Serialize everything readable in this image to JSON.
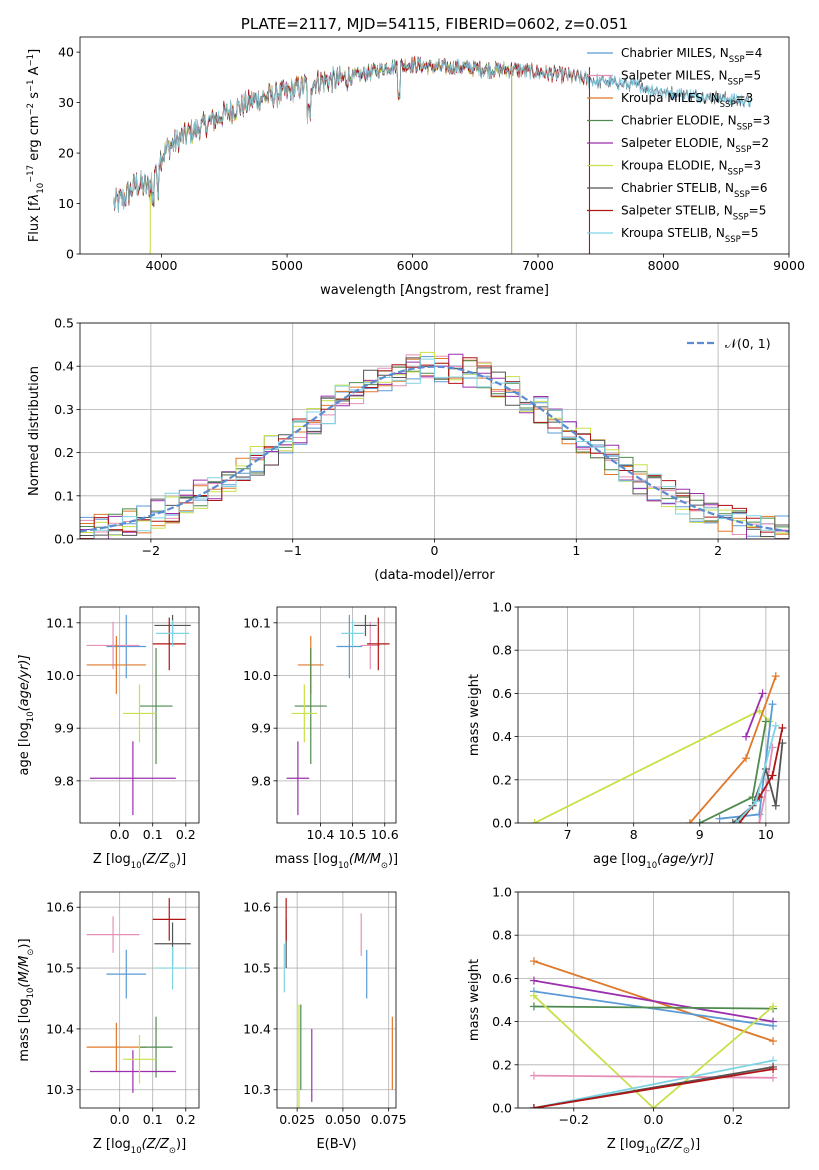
{
  "colors": {
    "Chabrier MILES": "#5a9bd5",
    "Salpeter MILES": "#e58fb8",
    "Kroupa MILES": "#e0782a",
    "Chabrier ELODIE": "#4e8a4e",
    "Salpeter ELODIE": "#9b2fae",
    "Kroupa ELODIE": "#c8e04a",
    "Chabrier STELIB": "#555555",
    "Salpeter STELIB": "#b01515",
    "Kroupa STELIB": "#7fd4e4",
    "normal_curve": "#5b8bd0"
  },
  "chart_data": [
    {
      "id": "spectrum",
      "type": "line",
      "title": "PLATE=2117, MJD=54115, FIBERID=0602, z=0.051",
      "xlabel": "wavelength [Angstrom, rest frame]",
      "ylabel_parts": [
        "Flux [f",
        "λ",
        "10",
        "−17",
        " erg cm",
        "−2",
        " s",
        "−1",
        " A",
        "−1",
        "]"
      ],
      "xlim": [
        3350,
        9000
      ],
      "ylim": [
        0,
        43
      ],
      "xticks": [
        4000,
        5000,
        6000,
        7000,
        8000,
        9000
      ],
      "yticks": [
        0,
        10,
        20,
        30,
        40
      ],
      "grid": false,
      "legend_position": "top-right",
      "legend": [
        {
          "model": "Chabrier MILES",
          "nssp": "4"
        },
        {
          "model": "Salpeter MILES",
          "nssp": "5"
        },
        {
          "model": "Kroupa MILES",
          "nssp": "3"
        },
        {
          "model": "Chabrier ELODIE",
          "nssp": "3"
        },
        {
          "model": "Salpeter ELODIE",
          "nssp": "2"
        },
        {
          "model": "Kroupa ELODIE",
          "nssp": "3"
        },
        {
          "model": "Chabrier STELIB",
          "nssp": "6"
        },
        {
          "model": "Salpeter STELIB",
          "nssp": "5"
        },
        {
          "model": "Kroupa STELIB",
          "nssp": "5"
        }
      ],
      "continuum": {
        "x": [
          3620,
          3700,
          3800,
          3900,
          3960,
          4050,
          4150,
          4300,
          4450,
          4600,
          4800,
          5000,
          5200,
          5400,
          5600,
          5800,
          6000,
          6200,
          6400,
          6600,
          6800,
          7000,
          7200,
          7400,
          7600,
          7800,
          8000,
          8200,
          8400,
          8600,
          8800
        ],
        "y": [
          10,
          11,
          14,
          13,
          18,
          21,
          23,
          25,
          27,
          29,
          31,
          32,
          34,
          34.5,
          35.5,
          37,
          37.5,
          37,
          37,
          36.5,
          36.5,
          36,
          35.5,
          34.5,
          34,
          33.5,
          32,
          31.5,
          31,
          30.5,
          30
        ]
      },
      "model_ranges": {
        "Chabrier MILES": [
          3620,
          8700
        ],
        "Salpeter MILES": [
          3620,
          7400
        ],
        "Kroupa MILES": [
          3620,
          7400
        ],
        "Chabrier ELODIE": [
          3620,
          6800
        ],
        "Salpeter ELODIE": [
          3620,
          6800
        ],
        "Kroupa ELODIE": [
          3620,
          6800
        ],
        "Chabrier STELIB": [
          3620,
          8700
        ],
        "Salpeter STELIB": [
          3620,
          7400
        ],
        "Kroupa STELIB": [
          3620,
          8700
        ]
      },
      "drop_wavelengths": [
        3910,
        6790,
        7410
      ]
    },
    {
      "id": "residuals",
      "type": "histogram",
      "xlabel": "(data-model)/error",
      "ylabel": "Normed distribution",
      "xlim": [
        -2.5,
        2.5
      ],
      "ylim": [
        0,
        0.5
      ],
      "xticks": [
        -2,
        -1,
        0,
        1,
        2
      ],
      "yticks": [
        0.0,
        0.1,
        0.2,
        0.3,
        0.4,
        0.5
      ],
      "grid": true,
      "legend_position": "top-right",
      "legend_label": "𝒩(0, 1)",
      "bin_width": 0.1
    },
    {
      "id": "age_vs_Z",
      "type": "errorbar",
      "xlabel_parts": [
        "Z [log",
        "10",
        "(Z/Z",
        "⊙",
        ")]"
      ],
      "ylabel_parts": [
        "age  [log",
        "10",
        "(age/yr)]"
      ],
      "xlim": [
        -0.12,
        0.24
      ],
      "ylim": [
        9.72,
        10.13
      ],
      "xticks": [
        0.0,
        0.1,
        0.2
      ],
      "yticks": [
        9.8,
        9.9,
        10.0,
        10.1
      ],
      "grid": true,
      "points": [
        {
          "model": "Chabrier MILES",
          "x": 0.02,
          "xerr": 0.06,
          "y": 10.055,
          "yerr": 0.06
        },
        {
          "model": "Salpeter MILES",
          "x": -0.02,
          "xerr": 0.08,
          "y": 10.057,
          "yerr": 0.045
        },
        {
          "model": "Kroupa MILES",
          "x": -0.01,
          "xerr": 0.09,
          "y": 10.02,
          "yerr": 0.055
        },
        {
          "model": "Chabrier ELODIE",
          "x": 0.11,
          "xerr": 0.05,
          "y": 9.942,
          "yerr": 0.11
        },
        {
          "model": "Salpeter ELODIE",
          "x": 0.04,
          "xerr": 0.13,
          "y": 9.805,
          "yerr": 0.07
        },
        {
          "model": "Kroupa ELODIE",
          "x": 0.06,
          "xerr": 0.05,
          "y": 9.928,
          "yerr": 0.055
        },
        {
          "model": "Chabrier STELIB",
          "x": 0.16,
          "xerr": 0.055,
          "y": 10.095,
          "yerr": 0.02
        },
        {
          "model": "Salpeter STELIB",
          "x": 0.15,
          "xerr": 0.05,
          "y": 10.06,
          "yerr": 0.05
        },
        {
          "model": "Kroupa STELIB",
          "x": 0.16,
          "xerr": 0.05,
          "y": 10.08,
          "yerr": 0.025
        }
      ]
    },
    {
      "id": "age_vs_mass",
      "type": "errorbar",
      "xlabel_parts": [
        "mass [log",
        "10",
        "(M/M",
        "⊙",
        ")]"
      ],
      "xlim": [
        10.265,
        10.635
      ],
      "ylim": [
        9.72,
        10.13
      ],
      "xticks": [
        10.4,
        10.5,
        10.6
      ],
      "yticks": [
        9.8,
        9.9,
        10.0,
        10.1
      ],
      "grid": true,
      "points": [
        {
          "model": "Chabrier MILES",
          "x": 10.49,
          "xerr": 0.04,
          "y": 10.055,
          "yerr": 0.06
        },
        {
          "model": "Salpeter MILES",
          "x": 10.555,
          "xerr": 0.03,
          "y": 10.057,
          "yerr": 0.045
        },
        {
          "model": "Kroupa MILES",
          "x": 10.37,
          "xerr": 0.04,
          "y": 10.02,
          "yerr": 0.055
        },
        {
          "model": "Chabrier ELODIE",
          "x": 10.37,
          "xerr": 0.05,
          "y": 9.942,
          "yerr": 0.11
        },
        {
          "model": "Salpeter ELODIE",
          "x": 10.33,
          "xerr": 0.035,
          "y": 9.805,
          "yerr": 0.07
        },
        {
          "model": "Kroupa ELODIE",
          "x": 10.35,
          "xerr": 0.04,
          "y": 9.928,
          "yerr": 0.055
        },
        {
          "model": "Chabrier STELIB",
          "x": 10.54,
          "xerr": 0.035,
          "y": 10.095,
          "yerr": 0.02
        },
        {
          "model": "Salpeter STELIB",
          "x": 10.58,
          "xerr": 0.035,
          "y": 10.06,
          "yerr": 0.05
        },
        {
          "model": "Kroupa STELIB",
          "x": 10.5,
          "xerr": 0.035,
          "y": 10.08,
          "yerr": 0.025
        }
      ]
    },
    {
      "id": "massweight_vs_age",
      "type": "line",
      "xlabel_parts": [
        "age  [log",
        "10",
        "(age/yr)]"
      ],
      "ylabel": "mass weight",
      "xlim": [
        6.25,
        10.35
      ],
      "ylim": [
        0,
        1
      ],
      "xticks": [
        7,
        8,
        9,
        10
      ],
      "yticks": [
        0.0,
        0.2,
        0.4,
        0.6,
        0.8,
        1.0
      ],
      "grid": true,
      "series": [
        {
          "model": "Kroupa ELODIE",
          "x": [
            6.5,
            9.9,
            10.05
          ],
          "y": [
            0.0,
            0.52,
            0.47
          ]
        },
        {
          "model": "Kroupa MILES",
          "x": [
            8.85,
            9.7,
            10.15
          ],
          "y": [
            0.0,
            0.3,
            0.68
          ]
        },
        {
          "model": "Salpeter ELODIE",
          "x": [
            9.7,
            9.95
          ],
          "y": [
            0.4,
            0.6
          ]
        },
        {
          "model": "Chabrier MILES",
          "x": [
            9.3,
            9.9,
            10.1
          ],
          "y": [
            0.02,
            0.04,
            0.55
          ]
        },
        {
          "model": "Salpeter MILES",
          "x": [
            9.9,
            10.0,
            10.1
          ],
          "y": [
            0.0,
            0.15,
            0.35
          ]
        },
        {
          "model": "Chabrier ELODIE",
          "x": [
            9.0,
            9.8,
            10.0
          ],
          "y": [
            0.0,
            0.12,
            0.47
          ]
        },
        {
          "model": "Chabrier STELIB",
          "x": [
            9.5,
            9.8,
            10.0,
            10.15,
            10.25
          ],
          "y": [
            0.0,
            0.08,
            0.25,
            0.08,
            0.37
          ]
        },
        {
          "model": "Salpeter STELIB",
          "x": [
            9.6,
            9.9,
            10.1,
            10.25
          ],
          "y": [
            0.0,
            0.12,
            0.22,
            0.44
          ]
        },
        {
          "model": "Kroupa STELIB",
          "x": [
            9.55,
            9.85,
            10.15
          ],
          "y": [
            0.0,
            0.1,
            0.45
          ]
        }
      ]
    },
    {
      "id": "mass_vs_Z",
      "type": "errorbar",
      "xlabel_parts": [
        "Z [log",
        "10",
        "(Z/Z",
        "⊙",
        ")]"
      ],
      "ylabel_parts": [
        "mass [log",
        "10",
        "(M/M",
        "⊙",
        ")]"
      ],
      "xlim": [
        -0.12,
        0.24
      ],
      "ylim": [
        10.27,
        10.625
      ],
      "xticks": [
        0.0,
        0.1,
        0.2
      ],
      "yticks": [
        10.3,
        10.4,
        10.5,
        10.6
      ],
      "grid": true,
      "points": [
        {
          "model": "Chabrier MILES",
          "x": 0.02,
          "xerr": 0.06,
          "y": 10.49,
          "yerr": 0.04
        },
        {
          "model": "Salpeter MILES",
          "x": -0.02,
          "xerr": 0.08,
          "y": 10.555,
          "yerr": 0.03
        },
        {
          "model": "Kroupa MILES",
          "x": -0.01,
          "xerr": 0.09,
          "y": 10.37,
          "yerr": 0.04
        },
        {
          "model": "Chabrier ELODIE",
          "x": 0.11,
          "xerr": 0.05,
          "y": 10.37,
          "yerr": 0.05
        },
        {
          "model": "Salpeter ELODIE",
          "x": 0.04,
          "xerr": 0.13,
          "y": 10.33,
          "yerr": 0.035
        },
        {
          "model": "Kroupa ELODIE",
          "x": 0.06,
          "xerr": 0.05,
          "y": 10.35,
          "yerr": 0.04
        },
        {
          "model": "Chabrier STELIB",
          "x": 0.16,
          "xerr": 0.055,
          "y": 10.54,
          "yerr": 0.035
        },
        {
          "model": "Salpeter STELIB",
          "x": 0.15,
          "xerr": 0.05,
          "y": 10.58,
          "yerr": 0.035
        },
        {
          "model": "Kroupa STELIB",
          "x": 0.16,
          "xerr": 0.05,
          "y": 10.5,
          "yerr": 0.035
        }
      ]
    },
    {
      "id": "mass_vs_EBV",
      "type": "errorbar",
      "xlabel": "E(B-V)",
      "xlim": [
        0.014,
        0.079
      ],
      "ylim": [
        10.27,
        10.625
      ],
      "xticks": [
        0.025,
        0.05,
        0.075
      ],
      "yticks": [
        10.3,
        10.4,
        10.5,
        10.6
      ],
      "grid": true,
      "points": [
        {
          "model": "Chabrier MILES",
          "x": 0.063,
          "y": 10.49,
          "yerr": 0.04
        },
        {
          "model": "Salpeter MILES",
          "x": 0.06,
          "y": 10.555,
          "yerr": 0.035
        },
        {
          "model": "Kroupa MILES",
          "x": 0.077,
          "y": 10.36,
          "yerr": 0.06
        },
        {
          "model": "Chabrier ELODIE",
          "x": 0.027,
          "y": 10.37,
          "yerr": 0.07
        },
        {
          "model": "Salpeter ELODIE",
          "x": 0.033,
          "y": 10.34,
          "yerr": 0.06
        },
        {
          "model": "Kroupa ELODIE",
          "x": 0.026,
          "y": 10.35,
          "yerr": 0.09
        },
        {
          "model": "Chabrier STELIB",
          "x": 0.019,
          "y": 10.54,
          "yerr": 0.04
        },
        {
          "model": "Salpeter STELIB",
          "x": 0.019,
          "y": 10.58,
          "yerr": 0.035
        },
        {
          "model": "Kroupa STELIB",
          "x": 0.018,
          "y": 10.5,
          "yerr": 0.04
        }
      ]
    },
    {
      "id": "massweight_vs_Z",
      "type": "line",
      "xlabel_parts": [
        "Z [log",
        "10",
        "(Z/Z",
        "⊙",
        ")]"
      ],
      "ylabel": "mass weight",
      "xlim": [
        -0.34,
        0.34
      ],
      "ylim": [
        0,
        1
      ],
      "xticks": [
        -0.2,
        0.0,
        0.2
      ],
      "yticks": [
        0.0,
        0.2,
        0.4,
        0.6,
        0.8,
        1.0
      ],
      "grid": true,
      "series": [
        {
          "model": "Kroupa MILES",
          "x": [
            -0.3,
            0.3
          ],
          "y": [
            0.68,
            0.31
          ]
        },
        {
          "model": "Salpeter ELODIE",
          "x": [
            -0.3,
            0.3
          ],
          "y": [
            0.59,
            0.4
          ]
        },
        {
          "model": "Chabrier MILES",
          "x": [
            -0.3,
            0.3
          ],
          "y": [
            0.54,
            0.38
          ]
        },
        {
          "model": "Chabrier ELODIE",
          "x": [
            -0.3,
            0.3
          ],
          "y": [
            0.47,
            0.46
          ]
        },
        {
          "model": "Kroupa ELODIE",
          "x": [
            -0.3,
            0.0,
            0.3
          ],
          "y": [
            0.52,
            0.0,
            0.47
          ]
        },
        {
          "model": "Salpeter MILES",
          "x": [
            -0.3,
            0.3
          ],
          "y": [
            0.15,
            0.14
          ]
        },
        {
          "model": "Kroupa STELIB",
          "x": [
            -0.3,
            0.3
          ],
          "y": [
            0.0,
            0.22
          ]
        },
        {
          "model": "Chabrier STELIB",
          "x": [
            -0.3,
            0.3
          ],
          "y": [
            0.0,
            0.19
          ]
        },
        {
          "model": "Salpeter STELIB",
          "x": [
            -0.3,
            0.3
          ],
          "y": [
            0.0,
            0.18
          ]
        }
      ]
    }
  ]
}
